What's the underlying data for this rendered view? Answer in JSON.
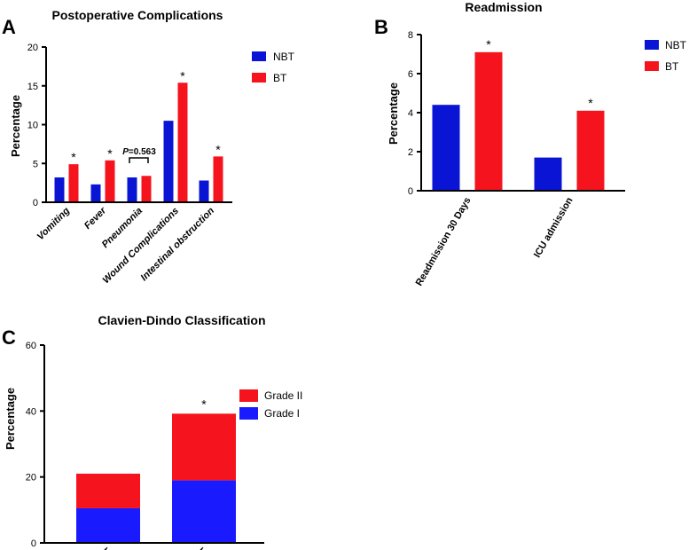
{
  "colors": {
    "nbt": "#0a14d4",
    "bt": "#f5141e",
    "grade_i": "#1a1aff",
    "grade_ii": "#f5141e"
  },
  "chart_data": [
    {
      "panel": "A",
      "type": "bar",
      "title": "Postoperative Complications",
      "ylabel": "Percentage",
      "ylim": [
        0,
        20
      ],
      "yticks": [
        "0",
        "5",
        "10",
        "15",
        "20"
      ],
      "categories": [
        "Vomiting",
        "Fever",
        "Pneumonia",
        "Wound Complications",
        "Intestinal obstruction"
      ],
      "series": [
        {
          "name": "NBT",
          "values": [
            3.2,
            2.3,
            3.2,
            10.5,
            2.8
          ]
        },
        {
          "name": "BT",
          "values": [
            4.9,
            5.4,
            3.4,
            15.4,
            5.9
          ]
        }
      ],
      "significance": [
        "*",
        "*",
        "",
        "*",
        "*"
      ],
      "annotation": {
        "p": "P",
        "rest": "=0.563"
      },
      "legend": [
        "NBT",
        "BT"
      ]
    },
    {
      "panel": "B",
      "type": "bar",
      "title": "Readmission",
      "ylabel": "Percentage",
      "ylim": [
        0,
        8
      ],
      "yticks": [
        "0",
        "2",
        "4",
        "6",
        "8"
      ],
      "categories": [
        "Readmission 30 Days",
        "ICU admission"
      ],
      "series": [
        {
          "name": "NBT",
          "values": [
            4.4,
            1.7
          ]
        },
        {
          "name": "BT",
          "values": [
            7.1,
            4.1
          ]
        }
      ],
      "significance": [
        "*",
        "*"
      ],
      "legend": [
        "NBT",
        "BT"
      ]
    },
    {
      "panel": "C",
      "type": "stacked-bar",
      "title": "Clavien-Dindo Classification",
      "ylabel": "Percentage",
      "ylim": [
        0,
        60
      ],
      "yticks": [
        "0",
        "20",
        "40",
        "60"
      ],
      "categories": [
        "NBT",
        "BT"
      ],
      "series": [
        {
          "name": "Grade I",
          "values": [
            10.5,
            19
          ]
        },
        {
          "name": "Grade II",
          "values": [
            10.5,
            20.2
          ]
        }
      ],
      "significance": [
        "",
        "*"
      ],
      "legend": [
        "Grade II",
        "Grade I"
      ]
    }
  ]
}
